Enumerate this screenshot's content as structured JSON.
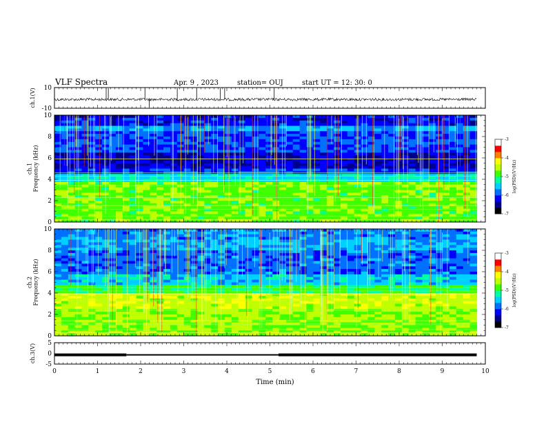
{
  "header": {
    "title": "VLF Spectra",
    "date": "Apr. 9  , 2023",
    "station": "station= OUJ",
    "start": "start  UT  =   12: 30: 0"
  },
  "colorbar": {
    "label": "log(PSD)(V²/Hz)",
    "ticks": [
      "-3",
      "-4",
      "-5",
      "-6",
      "-7"
    ],
    "colors": [
      "#000000",
      "#00008b",
      "#0000ff",
      "#0070ff",
      "#00d0ff",
      "#00ffa0",
      "#40ff00",
      "#c0ff00",
      "#ffff00",
      "#ff8000",
      "#ff0000",
      "#ffffff"
    ]
  },
  "chart_data": [
    {
      "type": "line",
      "name": "ch1-waveform",
      "ylabel": "ch.1(V)",
      "ylim": [
        -10,
        10
      ],
      "yticks": [
        "10",
        "-10"
      ],
      "xlim": [
        0,
        10
      ],
      "baseline": -1.5,
      "spikes_min": [
        2.1,
        2.2,
        3.3,
        3.85,
        3.95,
        1.2,
        2.85,
        1.25,
        5.1
      ],
      "x": [
        0,
        1,
        2,
        3,
        4,
        5,
        6,
        7,
        8,
        9,
        9.8
      ],
      "y": [
        -1.5,
        -1.5,
        -1.5,
        -1.5,
        -1.5,
        -1.5,
        -1.5,
        -1.5,
        -1.5,
        -1.5,
        -1.5
      ]
    },
    {
      "type": "heatmap",
      "name": "ch1-spectrogram",
      "ylabel": "ch.1\nFrequency  (kHz)",
      "ylim": [
        0,
        10
      ],
      "yticks": [
        "0",
        "2",
        "4",
        "6",
        "8",
        "10"
      ],
      "xlim": [
        0,
        10
      ],
      "data_xmax": 9.8,
      "zlim": [
        -7,
        -3
      ]
    },
    {
      "type": "heatmap",
      "name": "ch2-spectrogram",
      "ylabel": "ch.2\nFrequency  (kHz)",
      "ylim": [
        0,
        10
      ],
      "yticks": [
        "0",
        "2",
        "4",
        "6",
        "8",
        "10"
      ],
      "xlim": [
        0,
        10
      ],
      "data_xmax": 9.8,
      "zlim": [
        -7,
        -3
      ]
    },
    {
      "type": "line",
      "name": "ch3-waveform",
      "ylabel": "ch.3(V)",
      "ylim": [
        -5,
        5
      ],
      "yticks": [
        "5",
        "0",
        "-5"
      ],
      "xlim": [
        0,
        10
      ],
      "x": [
        0,
        1.67,
        1.67,
        5.2,
        5.2,
        9.8
      ],
      "y": [
        -0.7,
        -0.7,
        -0.7,
        -0.7,
        -0.7,
        -0.7
      ]
    }
  ],
  "xaxis": {
    "label": "Time  (min)",
    "ticks": [
      "0",
      "1",
      "2",
      "3",
      "4",
      "5",
      "6",
      "7",
      "8",
      "9",
      "10"
    ]
  }
}
